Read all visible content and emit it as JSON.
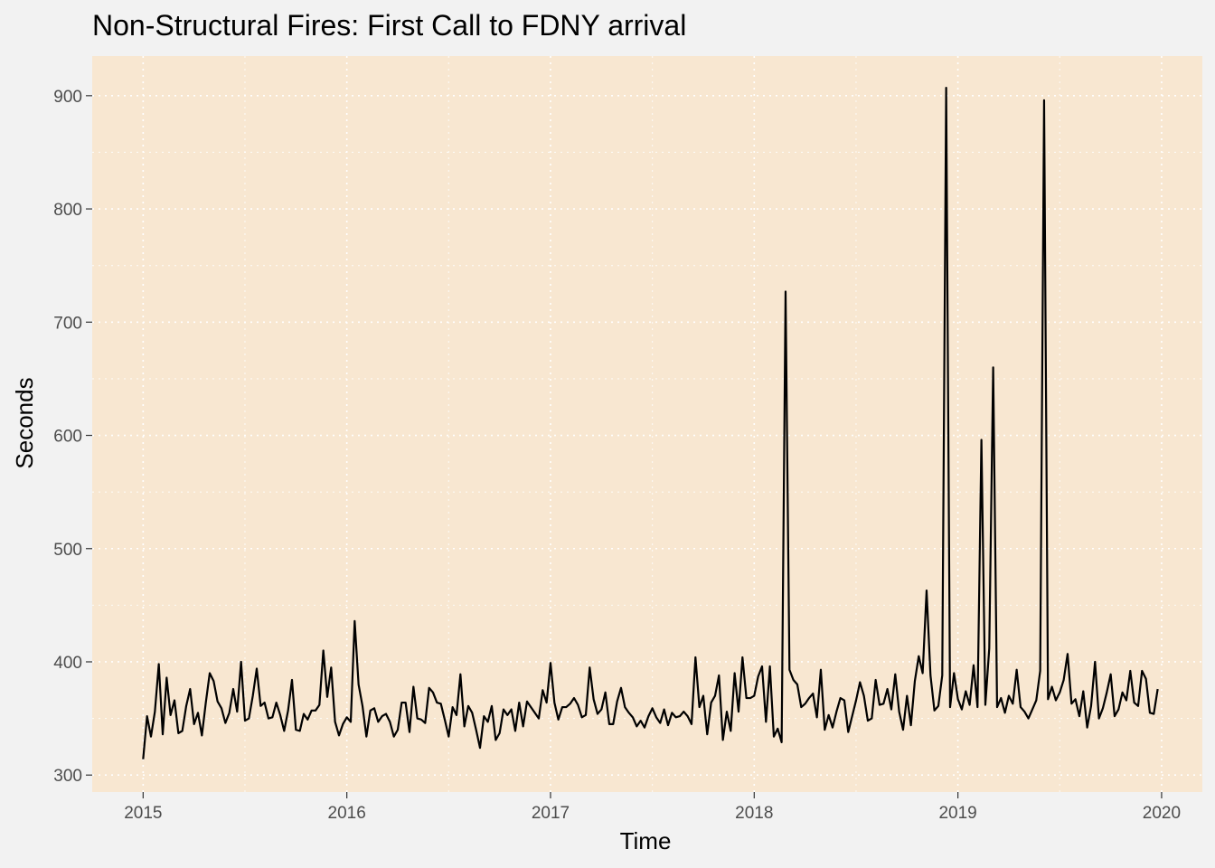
{
  "chart_data": {
    "type": "line",
    "title": "Non-Structural Fires: First Call to FDNY arrival",
    "xlabel": "Time",
    "ylabel": "Seconds",
    "xlim": [
      2014.75,
      2020.2
    ],
    "ylim": [
      285,
      935
    ],
    "x_ticks": [
      2015,
      2016,
      2017,
      2018,
      2019,
      2020
    ],
    "x_tick_labels": [
      "2015",
      "2016",
      "2017",
      "2018",
      "2019",
      "2020"
    ],
    "y_ticks": [
      300,
      400,
      500,
      600,
      700,
      800,
      900
    ],
    "y_tick_labels": [
      "300",
      "400",
      "500",
      "600",
      "700",
      "800",
      "900"
    ],
    "grid": true,
    "legend": "none",
    "panel_background": "#f8e7d1",
    "series_color": "#000000",
    "x_start": 2015,
    "x_step": 0.019231,
    "series": [
      {
        "values": [
          314,
          352,
          334,
          356,
          398,
          336,
          386,
          353,
          366,
          337,
          339,
          361,
          376,
          345,
          355,
          335,
          364,
          390,
          383,
          365,
          359,
          346,
          355,
          376,
          356,
          400,
          348,
          350,
          370,
          394,
          361,
          364,
          350,
          351,
          364,
          353,
          339,
          357,
          384,
          340,
          339,
          354,
          349,
          357,
          357,
          362,
          410,
          369,
          395,
          347,
          335,
          345,
          351,
          347,
          436,
          380,
          361,
          334,
          357,
          359,
          347,
          352,
          354,
          347,
          334,
          340,
          364,
          364,
          338,
          378,
          350,
          349,
          346,
          377,
          373,
          364,
          363,
          349,
          334,
          360,
          353,
          389,
          343,
          361,
          355,
          340,
          324,
          352,
          347,
          361,
          331,
          337,
          358,
          353,
          358,
          339,
          364,
          343,
          365,
          360,
          355,
          350,
          375,
          364,
          399,
          364,
          349,
          360,
          360,
          363,
          368,
          362,
          351,
          353,
          395,
          367,
          354,
          358,
          373,
          345,
          345,
          365,
          377,
          360,
          355,
          351,
          343,
          348,
          342,
          352,
          359,
          351,
          346,
          358,
          344,
          355,
          351,
          352,
          356,
          352,
          345,
          404,
          360,
          370,
          336,
          364,
          370,
          388,
          331,
          356,
          339,
          390,
          356,
          404,
          368,
          368,
          370,
          387,
          396,
          347,
          396,
          334,
          341,
          329,
          727,
          393,
          384,
          380,
          360,
          363,
          368,
          372,
          351,
          393,
          340,
          353,
          342,
          356,
          368,
          366,
          338,
          352,
          366,
          382,
          370,
          348,
          350,
          384,
          362,
          363,
          376,
          358,
          389,
          356,
          340,
          370,
          344,
          383,
          405,
          390,
          463,
          388,
          357,
          361,
          388,
          907,
          360,
          390,
          367,
          358,
          374,
          362,
          397,
          360,
          596,
          362,
          412,
          660,
          360,
          368,
          355,
          370,
          363,
          393,
          360,
          356,
          350,
          358,
          366,
          392,
          896,
          367,
          378,
          366,
          373,
          384,
          407,
          363,
          367,
          352,
          374,
          342,
          361,
          400,
          350,
          359,
          373,
          389,
          352,
          358,
          373,
          366,
          392,
          364,
          361,
          392,
          385,
          355,
          354,
          376
        ]
      }
    ]
  }
}
